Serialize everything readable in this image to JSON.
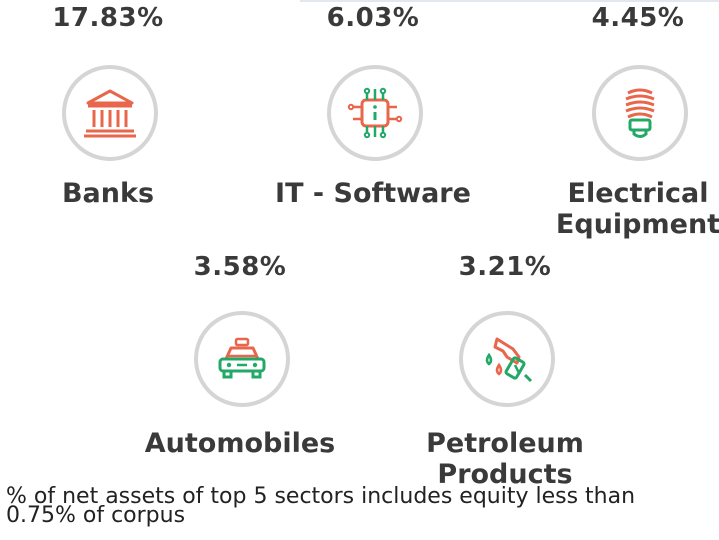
{
  "sectors": [
    {
      "name": "Banks",
      "percent": "17.83%",
      "icon": "bank-building-icon"
    },
    {
      "name": "IT - Software",
      "percent": "6.03%",
      "icon": "microchip-info-icon"
    },
    {
      "name": "Electrical Equipment",
      "name_line1": "Electrical",
      "name_line2": "Equipment",
      "percent": "4.45%",
      "icon": "light-bulb-icon"
    },
    {
      "name": "Automobiles",
      "percent": "3.58%",
      "icon": "car-icon"
    },
    {
      "name": "Petroleum Products",
      "name_line1": "Petroleum",
      "name_line2": "Products",
      "percent": "3.21%",
      "icon": "fuel-nozzle-icon"
    }
  ],
  "footnote": "% of net assets of top 5 sectors includes equity less than 0.75% of corpus",
  "colors": {
    "accent_red": "#e8664b",
    "accent_green": "#22a867",
    "circle_border": "#d5d5d5",
    "text": "#3a3a3a"
  }
}
